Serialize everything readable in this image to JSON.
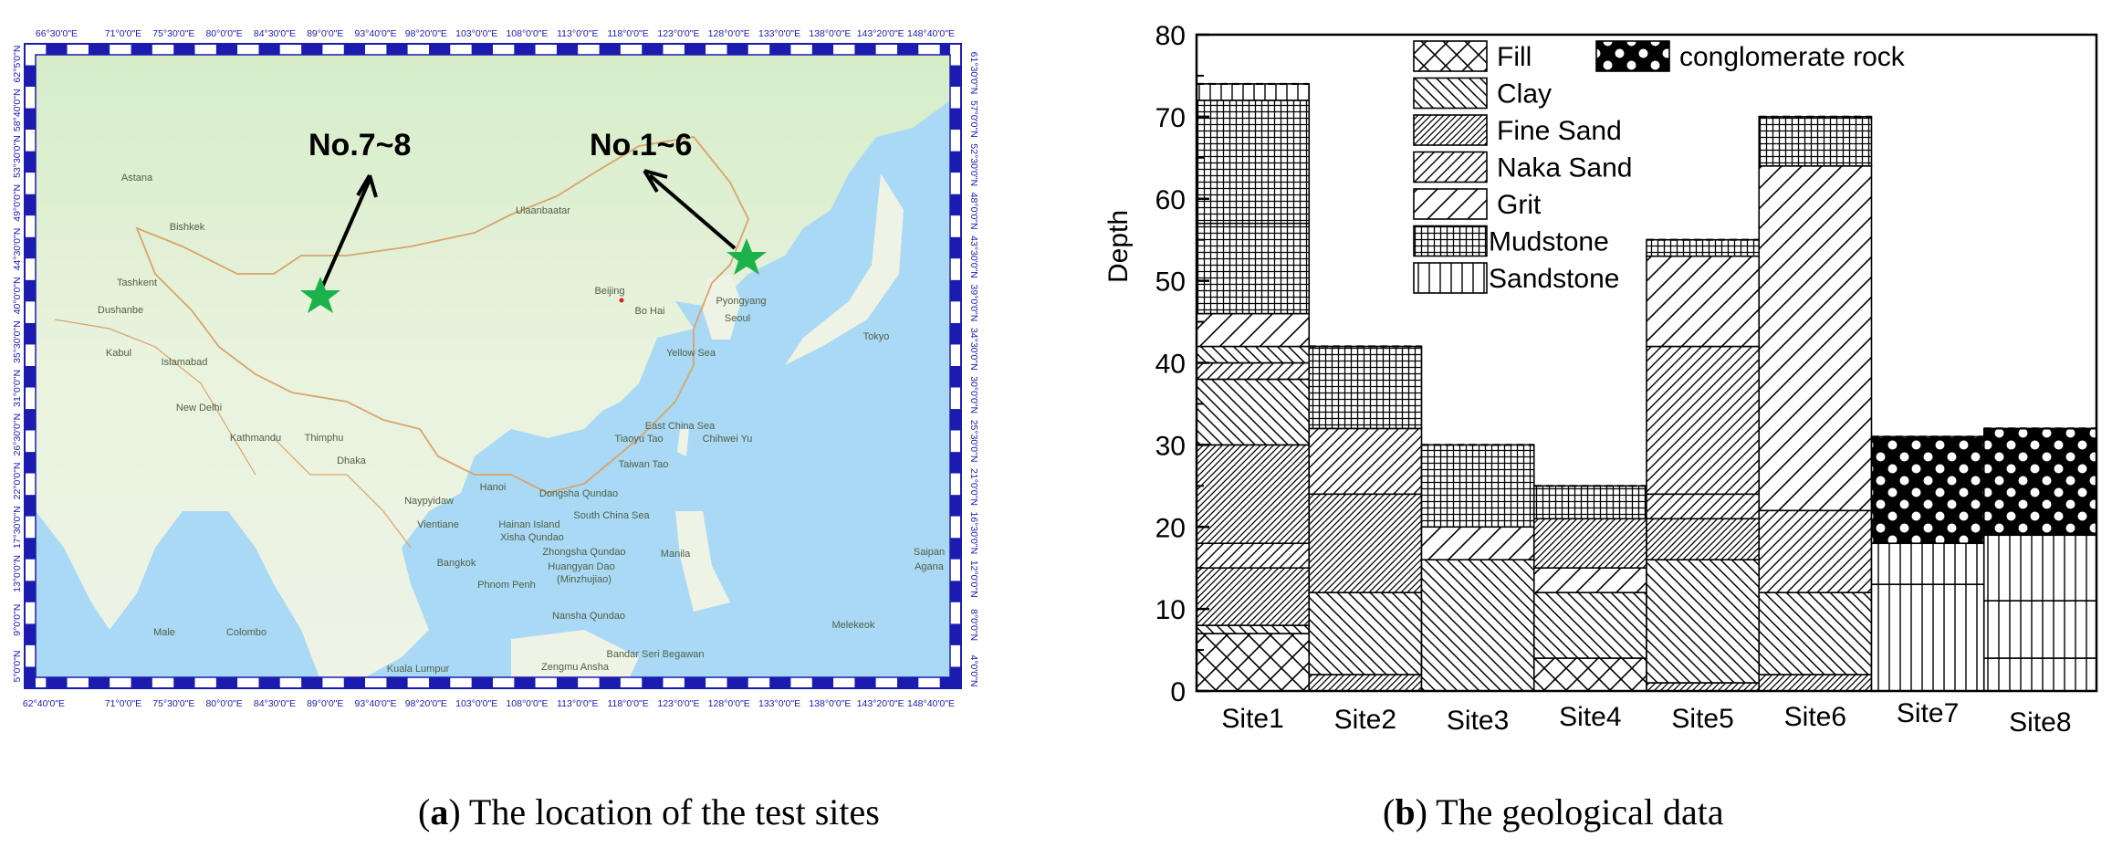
{
  "map": {
    "top_ticks": [
      "66°30'0\"E",
      "71°0'0\"E",
      "75°30'0\"E",
      "80°0'0\"E",
      "84°30'0\"E",
      "89°0'0\"E",
      "93°40'0\"E",
      "98°20'0\"E",
      "103°0'0\"E",
      "108°0'0\"E",
      "113°0'0\"E",
      "118°0'0\"E",
      "123°0'0\"E",
      "128°0'0\"E",
      "133°0'0\"E",
      "138°0'0\"E",
      "143°20'0\"E",
      "148°40'0\"E"
    ],
    "bottom_ticks": [
      "62°40'0\"E",
      "71°0'0\"E",
      "75°30'0\"E",
      "80°0'0\"E",
      "84°30'0\"E",
      "89°0'0\"E",
      "93°40'0\"E",
      "98°20'0\"E",
      "103°0'0\"E",
      "108°0'0\"E",
      "113°0'0\"E",
      "118°0'0\"E",
      "123°0'0\"E",
      "128°0'0\"E",
      "133°0'0\"E",
      "138°0'0\"E",
      "143°20'0\"E",
      "148°40'0\"E"
    ],
    "left_ticks": [
      "62°5'0\"N",
      "58°40'0\"N",
      "53°30'0\"N",
      "49°0'0\"N",
      "44°30'0\"N",
      "40°0'0\"N",
      "35°30'0\"N",
      "31°0'0\"N",
      "26°30'0\"N",
      "22°0'0\"N",
      "17°30'0\"N",
      "13°0'0\"N",
      "9°0'0\"N",
      "5°0'0\"N"
    ],
    "right_ticks": [
      "61°30'0\"N",
      "57°0'0\"N",
      "52°30'0\"N",
      "48°0'0\"N",
      "43°30'0\"N",
      "39°0'0\"N",
      "34°30'0\"N",
      "30°0'0\"N",
      "25°30'0\"N",
      "21°0'0\"N",
      "16°30'0\"N",
      "12°0'0\"N",
      "8°0'0\"N",
      "4°0'0\"N"
    ],
    "site_labels": [
      "No.7~8",
      "No.1~6"
    ],
    "place_labels": [
      "Astana",
      "Ulaanbaatar",
      "Bishkek",
      "Tashkent",
      "Dushanbe",
      "Kabul",
      "Islamabad",
      "New Delhi",
      "Kathmandu",
      "Thimphu",
      "Dhaka",
      "Beijing",
      "Bo Hai",
      "Pyongyang",
      "Seoul",
      "Yellow Sea",
      "Tokyo",
      "East China Sea",
      "Tiaoyu Tao",
      "Chihwei Yu",
      "Taiwan Tao",
      "Hanoi",
      "Naypyidaw",
      "Vientiane",
      "Hainan Island",
      "Dongsha Qundao",
      "South China Sea",
      "Xisha Qundao",
      "Zhongsha Qundao",
      "Huangyan Dao",
      "(Minzhujiao)",
      "Bangkok",
      "Phnom Penh",
      "Manila",
      "Nansha Qundao",
      "Zengmu Ansha",
      "Bandar Seri Begawan",
      "Kuala Lumpur",
      "Colombo",
      "Male",
      "Melekeok",
      "Saipan",
      "Agana"
    ]
  },
  "chart_data": {
    "type": "bar",
    "chart_kind": "stacked geological column",
    "ylabel": "Depth",
    "ylim": [
      0,
      80
    ],
    "yticks": [
      0,
      10,
      20,
      30,
      40,
      50,
      60,
      70,
      80
    ],
    "categories": [
      "Site1",
      "Site2",
      "Site3",
      "Site4",
      "Site5",
      "Site6",
      "Site7",
      "Site8"
    ],
    "legend": [
      "Fill",
      "Clay",
      "Fine Sand",
      "Naka Sand",
      "Grit",
      "Mudstone",
      "Sandstone",
      "conglomerate rock"
    ],
    "legend_placement": "top-center",
    "grid": false,
    "sites": [
      {
        "name": "Site1",
        "layers": [
          {
            "soil": "Fill",
            "from": 0,
            "to": 7
          },
          {
            "soil": "Clay",
            "from": 7,
            "to": 8
          },
          {
            "soil": "Fine Sand",
            "from": 8,
            "to": 15
          },
          {
            "soil": "Naka Sand",
            "from": 15,
            "to": 18
          },
          {
            "soil": "Fine Sand",
            "from": 18,
            "to": 30
          },
          {
            "soil": "Clay",
            "from": 30,
            "to": 38
          },
          {
            "soil": "Naka Sand",
            "from": 38,
            "to": 40
          },
          {
            "soil": "Clay",
            "from": 40,
            "to": 42
          },
          {
            "soil": "Grit",
            "from": 42,
            "to": 46
          },
          {
            "soil": "Mudstone",
            "from": 46,
            "to": 57
          },
          {
            "soil": "Mudstone",
            "from": 57,
            "to": 72
          },
          {
            "soil": "Sandstone",
            "from": 72,
            "to": 74
          }
        ]
      },
      {
        "name": "Site2",
        "layers": [
          {
            "soil": "Fine Sand",
            "from": 0,
            "to": 2
          },
          {
            "soil": "Clay",
            "from": 2,
            "to": 12
          },
          {
            "soil": "Fine Sand",
            "from": 12,
            "to": 24
          },
          {
            "soil": "Naka Sand",
            "from": 24,
            "to": 32
          },
          {
            "soil": "Mudstone",
            "from": 32,
            "to": 42
          }
        ]
      },
      {
        "name": "Site3",
        "layers": [
          {
            "soil": "Clay",
            "from": 0,
            "to": 16
          },
          {
            "soil": "Grit",
            "from": 16,
            "to": 20
          },
          {
            "soil": "Mudstone",
            "from": 20,
            "to": 30
          }
        ]
      },
      {
        "name": "Site4",
        "layers": [
          {
            "soil": "Fill",
            "from": 0,
            "to": 4
          },
          {
            "soil": "Clay",
            "from": 4,
            "to": 12
          },
          {
            "soil": "Grit",
            "from": 12,
            "to": 15
          },
          {
            "soil": "Fine Sand",
            "from": 15,
            "to": 21
          },
          {
            "soil": "Mudstone",
            "from": 21,
            "to": 25
          }
        ]
      },
      {
        "name": "Site5",
        "layers": [
          {
            "soil": "Fine Sand",
            "from": 0,
            "to": 1
          },
          {
            "soil": "Clay",
            "from": 1,
            "to": 16
          },
          {
            "soil": "Fine Sand",
            "from": 16,
            "to": 21
          },
          {
            "soil": "Naka Sand",
            "from": 21,
            "to": 24
          },
          {
            "soil": "Naka Sand",
            "from": 24,
            "to": 42
          },
          {
            "soil": "Grit",
            "from": 42,
            "to": 53
          },
          {
            "soil": "Mudstone",
            "from": 53,
            "to": 55
          }
        ]
      },
      {
        "name": "Site6",
        "layers": [
          {
            "soil": "Fine Sand",
            "from": 0,
            "to": 2
          },
          {
            "soil": "Clay",
            "from": 2,
            "to": 12
          },
          {
            "soil": "Naka Sand",
            "from": 12,
            "to": 22
          },
          {
            "soil": "Grit",
            "from": 22,
            "to": 64
          },
          {
            "soil": "Mudstone",
            "from": 64,
            "to": 70
          }
        ]
      },
      {
        "name": "Site7",
        "layers": [
          {
            "soil": "Sandstone",
            "from": 0,
            "to": 13
          },
          {
            "soil": "Sandstone",
            "from": 13,
            "to": 18
          },
          {
            "soil": "conglomerate rock",
            "from": 18,
            "to": 31
          }
        ]
      },
      {
        "name": "Site8",
        "layers": [
          {
            "soil": "Sandstone",
            "from": 0,
            "to": 4
          },
          {
            "soil": "Sandstone",
            "from": 4,
            "to": 11
          },
          {
            "soil": "Sandstone",
            "from": 11,
            "to": 19
          },
          {
            "soil": "conglomerate rock",
            "from": 19,
            "to": 32
          }
        ]
      }
    ]
  },
  "captions": {
    "a_letter": "a",
    "a_text": " The location of the test sites",
    "b_letter": "b",
    "b_text": " The geological data"
  }
}
